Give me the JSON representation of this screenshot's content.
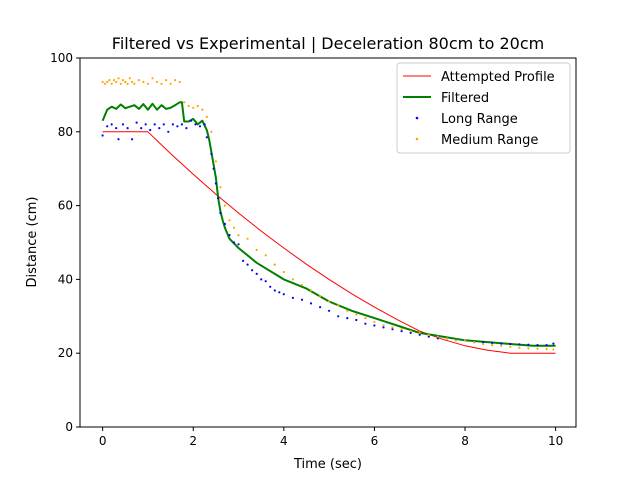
{
  "chart_data": {
    "type": "line",
    "title": "Filtered vs Experimental | Deceleration 80cm to 20cm",
    "xlabel": "Time (sec)",
    "ylabel": "Distance (cm)",
    "xlim": [
      -0.5,
      10.45
    ],
    "ylim": [
      0,
      100
    ],
    "xticks": [
      0,
      2,
      4,
      6,
      8,
      10
    ],
    "yticks": [
      0,
      20,
      40,
      60,
      80,
      100
    ],
    "xtick_labels": [
      "0",
      "2",
      "4",
      "6",
      "8",
      "10"
    ],
    "ytick_labels": [
      "0",
      "20",
      "40",
      "60",
      "80",
      "100"
    ],
    "grid": false,
    "legend_position": "top-right",
    "series": [
      {
        "name": "Attempted Profile",
        "kind": "line",
        "color": "#ff0000",
        "x": [
          0,
          1.0,
          1.5,
          2.0,
          2.5,
          3.0,
          3.5,
          4.0,
          4.5,
          5.0,
          5.5,
          6.0,
          6.5,
          7.0,
          7.5,
          8.0,
          8.5,
          9.0,
          10.0
        ],
        "y": [
          80,
          80,
          74.1,
          68.5,
          63.1,
          58.0,
          53.1,
          48.5,
          44.1,
          40.0,
          36.1,
          32.5,
          29.1,
          26.0,
          23.8,
          22.0,
          20.8,
          20.0,
          20.0
        ]
      },
      {
        "name": "Filtered",
        "kind": "line",
        "color": "#008000",
        "x": [
          0,
          0.05,
          0.1,
          0.2,
          0.3,
          0.4,
          0.5,
          0.6,
          0.7,
          0.8,
          0.9,
          1.0,
          1.1,
          1.2,
          1.3,
          1.4,
          1.5,
          1.6,
          1.7,
          1.75,
          1.8,
          1.9,
          2.0,
          2.1,
          2.2,
          2.3,
          2.35,
          2.4,
          2.5,
          2.55,
          2.6,
          2.65,
          2.7,
          2.8,
          3.0,
          3.2,
          3.4,
          3.6,
          3.8,
          4.0,
          4.2,
          4.5,
          5.0,
          5.5,
          6.0,
          6.5,
          7.0,
          7.5,
          8.0,
          8.5,
          9.0,
          9.5,
          10.0
        ],
        "y": [
          83,
          84.5,
          86,
          86.8,
          86.2,
          87.4,
          86.4,
          86.8,
          87.2,
          86.2,
          87.5,
          86.0,
          87.6,
          86.0,
          87.2,
          86.2,
          86.5,
          87.2,
          88.0,
          88.0,
          82.8,
          82.8,
          83.5,
          82.0,
          83.0,
          80.5,
          78.0,
          74.5,
          67.5,
          62.0,
          58.5,
          56.0,
          54.0,
          51.0,
          48.5,
          46.5,
          44.5,
          43.0,
          41.5,
          40.0,
          39.0,
          37.5,
          34.0,
          31.5,
          29.5,
          27.5,
          25.5,
          24.5,
          23.5,
          23.0,
          22.5,
          22.0,
          22.0
        ]
      },
      {
        "name": "Long Range",
        "kind": "scatter",
        "color": "#0000ff",
        "x": [
          0.0,
          0.1,
          0.2,
          0.3,
          0.35,
          0.45,
          0.55,
          0.65,
          0.75,
          0.85,
          0.95,
          1.05,
          1.15,
          1.25,
          1.35,
          1.45,
          1.55,
          1.65,
          1.75,
          1.85,
          1.95,
          2.05,
          2.15,
          2.25,
          2.3,
          2.4,
          2.45,
          2.5,
          2.55,
          2.6,
          2.7,
          2.8,
          2.9,
          3.0,
          3.1,
          3.2,
          3.3,
          3.4,
          3.5,
          3.6,
          3.7,
          3.8,
          3.9,
          4.0,
          4.2,
          4.4,
          4.6,
          4.8,
          5.0,
          5.2,
          5.4,
          5.6,
          5.8,
          6.0,
          6.2,
          6.4,
          6.6,
          6.8,
          7.0,
          7.2,
          7.4,
          7.6,
          7.8,
          8.0,
          8.2,
          8.4,
          8.6,
          8.8,
          9.0,
          9.2,
          9.4,
          9.6,
          9.8,
          9.95
        ],
        "y": [
          79,
          81.5,
          82,
          81,
          78,
          82,
          81,
          78,
          82.5,
          81,
          82,
          80.5,
          82,
          81,
          82,
          80,
          82,
          81.5,
          82,
          81,
          83,
          82,
          81.5,
          82,
          78.5,
          74,
          70,
          66,
          62,
          58,
          55,
          52,
          50,
          49.5,
          45,
          44,
          42.5,
          41.5,
          40,
          39.5,
          38,
          37,
          36.5,
          36,
          35,
          34.5,
          33.5,
          32.5,
          31.5,
          30,
          29.5,
          29,
          28,
          27.5,
          27,
          26.5,
          26,
          25.5,
          25,
          24.5,
          24,
          24,
          23.5,
          23.5,
          23,
          23,
          22.8,
          22.6,
          22.5,
          22.4,
          22.3,
          22.2,
          22.2,
          22.6
        ]
      },
      {
        "name": "Medium Range",
        "kind": "scatter",
        "color": "#ffa500",
        "x": [
          0.0,
          0.05,
          0.1,
          0.15,
          0.2,
          0.25,
          0.3,
          0.35,
          0.4,
          0.45,
          0.5,
          0.55,
          0.6,
          0.65,
          0.7,
          0.8,
          0.9,
          1.0,
          1.1,
          1.2,
          1.3,
          1.4,
          1.5,
          1.6,
          1.7,
          1.8,
          1.9,
          2.0,
          2.1,
          2.2,
          2.3,
          2.4,
          2.5,
          2.6,
          2.7,
          2.8,
          2.9,
          3.0,
          3.2,
          3.4,
          3.6,
          3.8,
          4.0,
          4.2,
          4.4,
          4.6,
          4.8,
          5.0,
          5.2,
          5.4,
          5.6,
          5.8,
          6.0,
          6.2,
          6.4,
          6.6,
          6.8,
          7.0,
          7.2,
          7.4,
          7.6,
          7.8,
          8.0,
          8.2,
          8.4,
          8.6,
          8.8,
          9.0,
          9.2,
          9.4,
          9.6,
          9.8,
          9.95
        ],
        "y": [
          93.5,
          93.0,
          93.5,
          94.0,
          93.0,
          94.0,
          93.5,
          94.5,
          93.0,
          94.0,
          93.5,
          93.0,
          94.5,
          93.5,
          93.0,
          94.0,
          93.5,
          93.0,
          94.5,
          93.5,
          93.0,
          94.0,
          93.0,
          94.0,
          93.5,
          88.0,
          87.0,
          86.5,
          87.0,
          86.0,
          84.0,
          80.0,
          72.0,
          65.0,
          60.0,
          56.0,
          54.0,
          52.0,
          51.0,
          48.0,
          46.5,
          44.0,
          42.0,
          40.0,
          38.5,
          37.0,
          35.5,
          34.0,
          33.0,
          31.5,
          30.5,
          29.5,
          28.5,
          27.5,
          27.0,
          26.5,
          26.0,
          25.5,
          25.0,
          24.5,
          24.0,
          23.5,
          23.5,
          23.0,
          22.5,
          22.2,
          22.0,
          21.7,
          21.5,
          21.3,
          21.2,
          21.1,
          21.0
        ]
      }
    ]
  }
}
